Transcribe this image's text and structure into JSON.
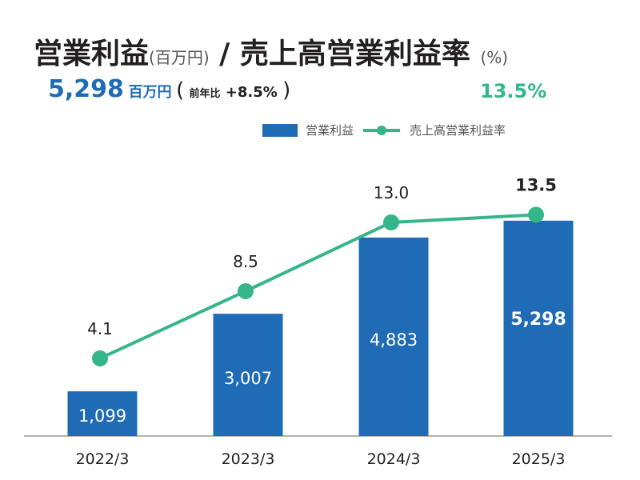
{
  "header": {
    "title_main": "営業利益",
    "title_main_unit": "(百万円)",
    "title_sep": "/",
    "title_rate": "売上高営業利益率",
    "title_rate_unit": "(%)",
    "value": "5,298",
    "value_unit": "百万円",
    "yoy_label": "前年比",
    "yoy_value": "+8.5%",
    "rate_value": "13.5%"
  },
  "colors": {
    "bar": "#1f6bb5",
    "line": "#35b58a",
    "axis": "#999999"
  },
  "chart_data": {
    "type": "bar+line",
    "categories": [
      "2022/3",
      "2023/3",
      "2024/3",
      "2025/3"
    ],
    "series": [
      {
        "name": "営業利益",
        "type": "bar",
        "values": [
          1099,
          3007,
          4883,
          5298
        ],
        "labels": [
          "1,099",
          "3,007",
          "4,883",
          "5,298"
        ]
      },
      {
        "name": "売上高営業利益率",
        "type": "line",
        "values": [
          4.1,
          8.5,
          13.0,
          13.5
        ],
        "labels": [
          "4.1",
          "8.5",
          "13.0",
          "13.5"
        ]
      }
    ],
    "legend": "top-right",
    "grid": false
  }
}
